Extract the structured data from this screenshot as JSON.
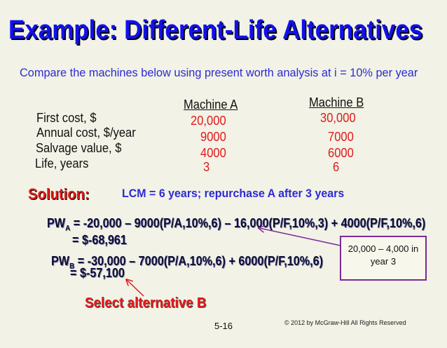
{
  "title": "Example: Different-Life Alternatives",
  "subtitle": "Compare the machines below using present worth analysis at i = 10% per year",
  "table": {
    "columns": [
      "Machine A",
      "Machine B"
    ],
    "rows": [
      {
        "label": "First cost, $",
        "a": "20,000",
        "b": "30,000"
      },
      {
        "label": "Annual cost, $/year",
        "a": "9000",
        "b": "7000"
      },
      {
        "label": "Salvage value, $",
        "a": "4000",
        "b": "6000"
      },
      {
        "label": "Life, years",
        "a": "3",
        "b": "6"
      }
    ]
  },
  "solution": {
    "heading": "Solution:",
    "lcm": "LCM = 6 years; repurchase A after 3 years",
    "pw_a": {
      "lhs": "PW",
      "sub": "A",
      "equation": " = -20,000 – 9000(P/A,10%,6) – 16,000(P/F,10%,3) + 4000(P/F,10%,6)",
      "result": "= $-68,961"
    },
    "pw_b": {
      "lhs": "PW",
      "sub": "B",
      "equation": " = -30,000 – 7000(P/A,10%,6) + 6000(P/F,10%,6)",
      "result": "= $-57,100"
    },
    "conclusion": "Select alternative B"
  },
  "callout": {
    "line1": "20,000 – 4,000 in",
    "line2": "year 3"
  },
  "footer": {
    "page": "5-16",
    "copyright": "© 2012 by McGraw-Hill    All Rights Reserved"
  },
  "colors": {
    "title": "#1111ee",
    "accent_red": "#e11a1a",
    "callout_border": "#7a2a9a",
    "background": "#f2f2e6"
  }
}
